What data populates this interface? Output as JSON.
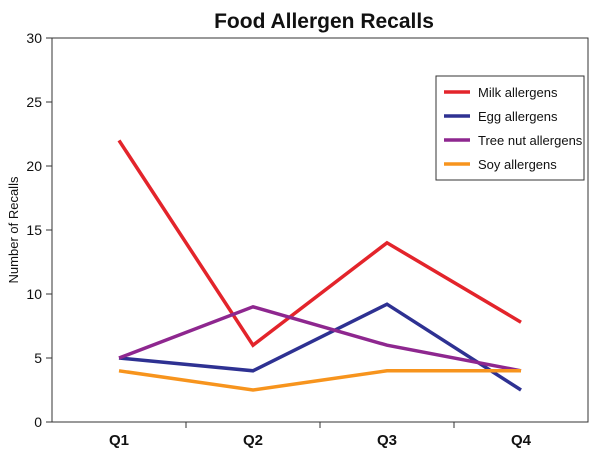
{
  "chart_data": {
    "type": "line",
    "title": "Food Allergen Recalls",
    "xlabel": "",
    "ylabel": "Number of Recalls",
    "categories": [
      "Q1",
      "Q2",
      "Q3",
      "Q4"
    ],
    "ylim": [
      0,
      30
    ],
    "yticks": [
      0,
      5,
      10,
      15,
      20,
      25,
      30
    ],
    "grid": false,
    "legend_position": "top-right",
    "series": [
      {
        "name": "Milk allergens",
        "color": "#e3242b",
        "values": [
          22,
          6,
          14,
          7.8
        ]
      },
      {
        "name": "Egg allergens",
        "color": "#2e3192",
        "values": [
          5,
          4,
          9.2,
          2.5
        ]
      },
      {
        "name": "Tree nut allergens",
        "color": "#8e278f",
        "values": [
          5,
          9,
          6,
          4
        ]
      },
      {
        "name": "Soy allergens",
        "color": "#f7941d",
        "values": [
          4,
          2.5,
          4,
          4
        ]
      }
    ]
  }
}
